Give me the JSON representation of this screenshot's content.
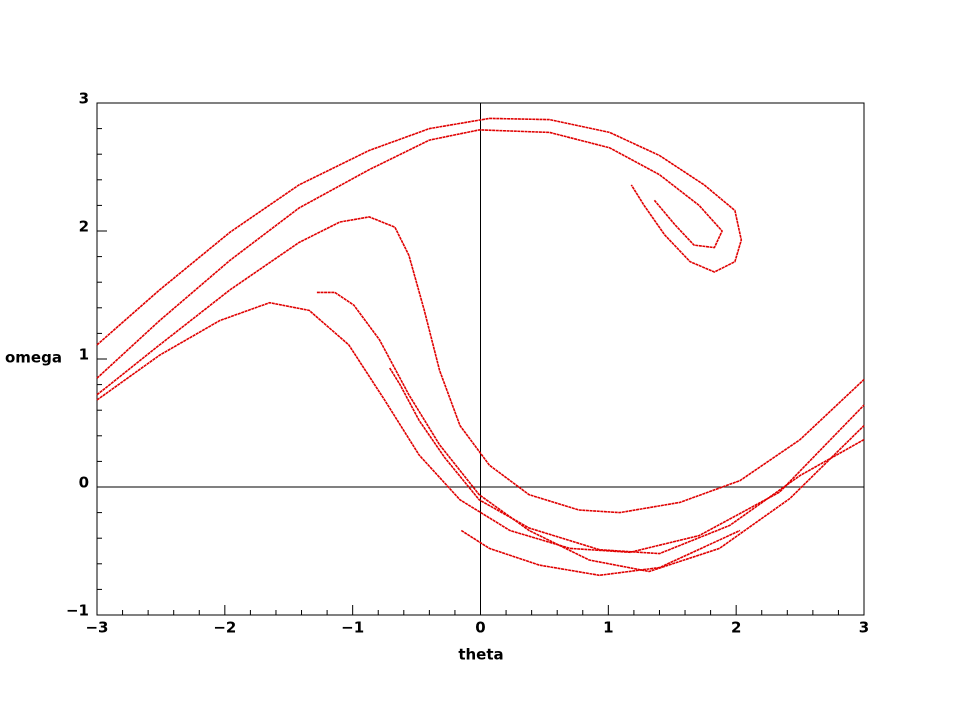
{
  "chart_data": {
    "type": "line",
    "x_label": "theta",
    "y_label": "omega",
    "xlim": [
      -3,
      3
    ],
    "ylim": [
      -1,
      3
    ],
    "xticks": [
      {
        "value": -3,
        "label": "−3"
      },
      {
        "value": -2,
        "label": "−2"
      },
      {
        "value": -1,
        "label": "−1"
      },
      0,
      1,
      2,
      3
    ],
    "yticks": [
      {
        "value": -1,
        "label": "−1"
      },
      0,
      1,
      2,
      3
    ],
    "xminorticks": [
      -2.8,
      -2.6,
      -2.4,
      -2.2,
      -1.8,
      -1.6,
      -1.4,
      -1.2,
      -0.8,
      -0.6,
      -0.4,
      -0.2,
      0.2,
      0.4,
      0.6,
      0.8,
      1.2,
      1.4,
      1.6,
      1.8,
      2.2,
      2.4,
      2.6,
      2.8
    ],
    "yminorticks": [
      -0.8,
      -0.6,
      -0.4,
      -0.2,
      0.2,
      0.4,
      0.6,
      0.8,
      1.2,
      1.4,
      1.6,
      1.8,
      2.2,
      2.4,
      2.6,
      2.8
    ],
    "zero_lines": true,
    "color": "#e00000",
    "series": [
      {
        "x": [
          -3.0,
          -2.51,
          -1.96,
          -1.42,
          -0.87,
          -0.4,
          0.07,
          0.54,
          1.01,
          1.4,
          1.75,
          1.99,
          2.04,
          1.99,
          1.83,
          1.64,
          1.44,
          1.28,
          1.18
        ],
        "values": [
          1.11,
          1.54,
          1.99,
          2.36,
          2.63,
          2.8,
          2.88,
          2.87,
          2.77,
          2.59,
          2.36,
          2.16,
          1.93,
          1.76,
          1.68,
          1.76,
          1.97,
          2.2,
          2.36
        ]
      },
      {
        "x": [
          -3.0,
          -2.51,
          -1.96,
          -1.42,
          -0.87,
          -0.4,
          -0.01,
          0.54,
          1.01,
          1.4,
          1.71,
          1.89,
          1.83,
          1.67,
          1.52,
          1.36
        ],
        "values": [
          0.85,
          1.3,
          1.77,
          2.18,
          2.48,
          2.71,
          2.79,
          2.77,
          2.65,
          2.44,
          2.2,
          2.0,
          1.87,
          1.89,
          2.05,
          2.24
        ]
      },
      {
        "x": [
          -3.0,
          -2.51,
          -1.96,
          -1.42,
          -1.1,
          -0.87,
          -0.67,
          -0.56,
          -0.44,
          -0.32,
          -0.16,
          0.07,
          0.38,
          0.77,
          1.09,
          1.56,
          2.03,
          2.5,
          3.0
        ],
        "values": [
          0.72,
          1.11,
          1.54,
          1.91,
          2.07,
          2.11,
          2.03,
          1.81,
          1.38,
          0.91,
          0.48,
          0.17,
          -0.06,
          -0.18,
          -0.2,
          -0.12,
          0.05,
          0.37,
          0.84
        ]
      },
      {
        "x": [
          -3.0,
          -2.51,
          -2.04,
          -1.65,
          -1.34,
          -1.03,
          -0.75,
          -0.48,
          -0.16,
          0.23,
          0.7,
          1.17,
          1.71,
          2.34,
          3.0
        ],
        "values": [
          0.68,
          1.03,
          1.3,
          1.44,
          1.38,
          1.11,
          0.68,
          0.25,
          -0.1,
          -0.34,
          -0.48,
          -0.51,
          -0.38,
          -0.04,
          0.64
        ]
      },
      {
        "x": [
          -1.28,
          -1.14,
          -0.99,
          -0.79,
          -0.56,
          -0.32,
          -0.01,
          0.38,
          0.85,
          1.32,
          1.87,
          2.42,
          3.0
        ],
        "values": [
          1.52,
          1.52,
          1.42,
          1.15,
          0.72,
          0.33,
          -0.06,
          -0.34,
          -0.57,
          -0.66,
          -0.48,
          -0.09,
          0.48
        ]
      },
      {
        "x": [
          -0.71,
          -0.63,
          -0.48,
          -0.28,
          -0.01,
          0.38,
          0.93,
          1.4,
          1.95,
          2.5,
          3.0
        ],
        "values": [
          0.93,
          0.8,
          0.52,
          0.23,
          -0.1,
          -0.32,
          -0.49,
          -0.52,
          -0.3,
          0.09,
          0.37
        ]
      },
      {
        "x": [
          -0.15,
          0.07,
          0.46,
          0.93,
          1.4,
          2.03
        ],
        "values": [
          -0.34,
          -0.48,
          -0.61,
          -0.69,
          -0.63,
          -0.34
        ]
      }
    ]
  }
}
